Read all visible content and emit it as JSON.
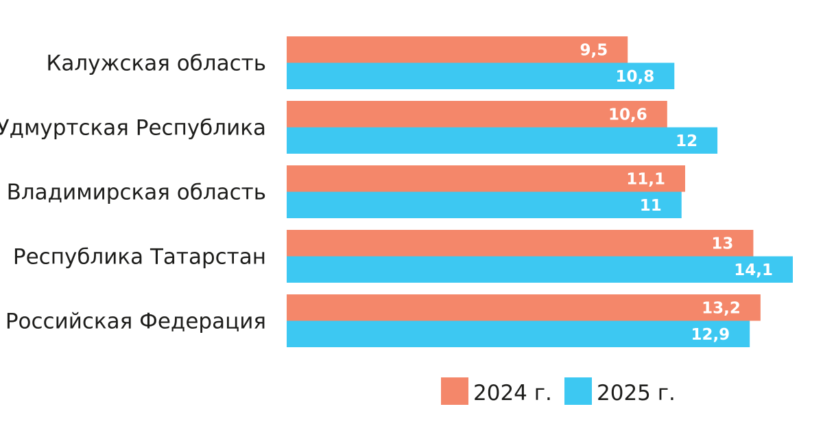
{
  "chart_data": {
    "type": "bar",
    "orientation": "horizontal",
    "categories": [
      "Калужская область",
      "Удмуртская Республика",
      "Владимирская область",
      "Республика Татарстан",
      "Российская Федерация"
    ],
    "series": [
      {
        "name": "2024 г.",
        "color": "#f4876a",
        "values": [
          9.5,
          10.6,
          11.1,
          13,
          13.2
        ],
        "labels": [
          "9,5",
          "10,6",
          "11,1",
          "13",
          "13,2"
        ]
      },
      {
        "name": "2025 г.",
        "color": "#3dc8f2",
        "values": [
          10.8,
          12,
          11,
          14.1,
          12.9
        ],
        "labels": [
          "10,8",
          "12",
          "11",
          "14,1",
          "12,9"
        ]
      }
    ],
    "xlim": [
      0,
      14.1
    ],
    "grid": false,
    "axes_visible": false,
    "legend": "bottom-right",
    "title": "",
    "xlabel": "",
    "ylabel": ""
  }
}
